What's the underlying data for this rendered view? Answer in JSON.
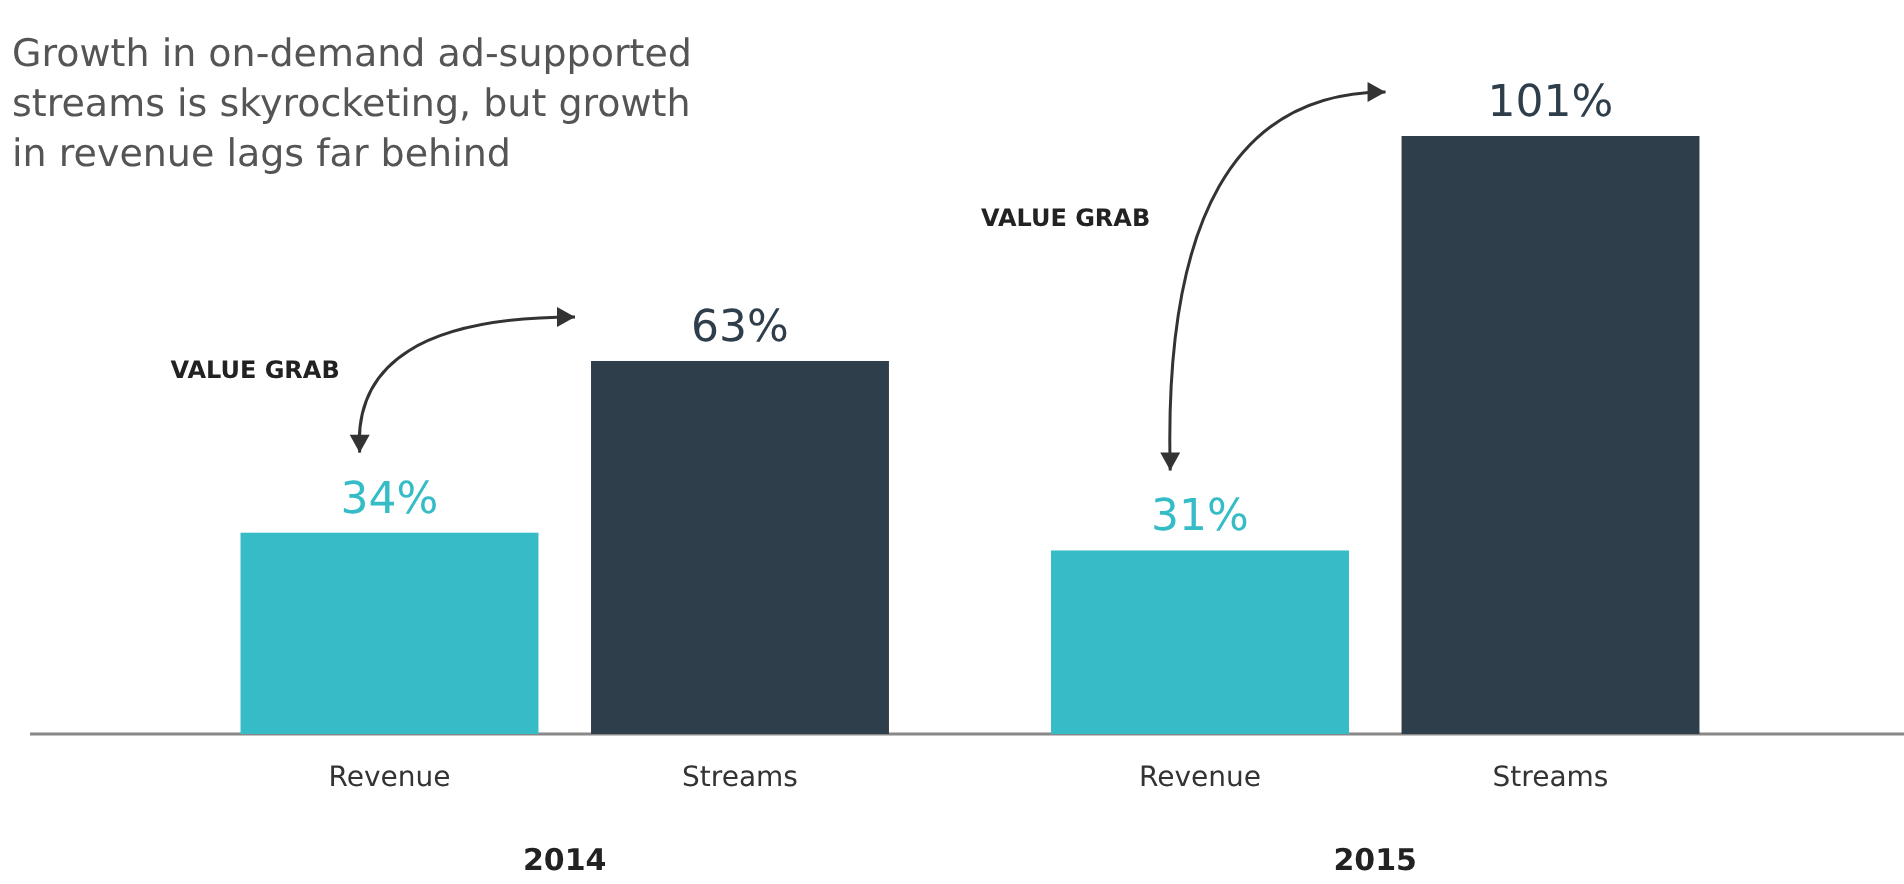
{
  "chart_data": {
    "type": "bar",
    "title": "Growth in on-demand ad-supported streams is skyrocketing, but growth in revenue lags far behind",
    "categories": [
      "2014",
      "2015"
    ],
    "series": [
      {
        "name": "Revenue",
        "color": "#35bcc6",
        "values": [
          34,
          31
        ],
        "value_labels": [
          "34%",
          "31%"
        ]
      },
      {
        "name": "Streams",
        "color": "#2f3e4b",
        "values": [
          63,
          101
        ],
        "value_labels": [
          "63%",
          "101%"
        ]
      }
    ],
    "annotations": [
      "VALUE GRAB",
      "VALUE GRAB"
    ],
    "legend": false
  }
}
